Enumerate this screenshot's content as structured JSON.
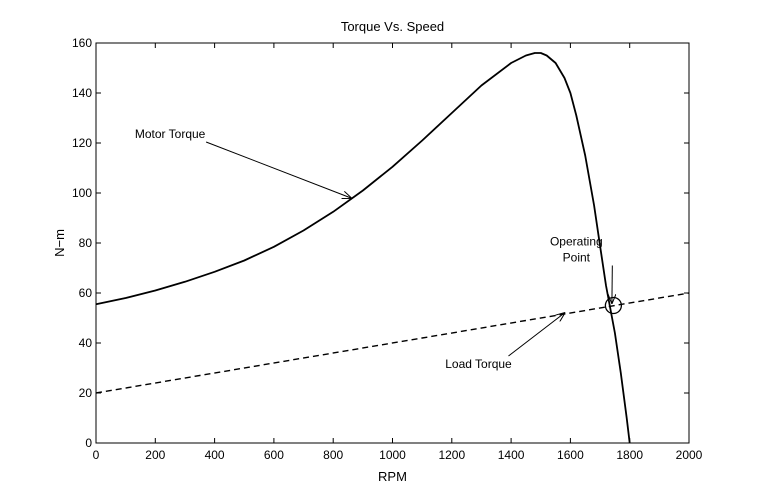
{
  "chart_data": {
    "type": "line",
    "title": "Torque Vs. Speed",
    "xlabel": "RPM",
    "ylabel": "N−m",
    "xlim": [
      0,
      2000
    ],
    "ylim": [
      0,
      160
    ],
    "x_ticks": [
      0,
      200,
      400,
      600,
      800,
      1000,
      1200,
      1400,
      1600,
      1800,
      2000
    ],
    "y_ticks": [
      0,
      20,
      40,
      60,
      80,
      100,
      120,
      140,
      160
    ],
    "grid": false,
    "series": [
      {
        "name": "Motor Torque",
        "style": "solid",
        "x": [
          0,
          100,
          200,
          300,
          400,
          500,
          600,
          700,
          800,
          900,
          1000,
          1100,
          1200,
          1300,
          1400,
          1450,
          1480,
          1500,
          1520,
          1550,
          1580,
          1600,
          1620,
          1650,
          1680,
          1700,
          1720,
          1750,
          1770,
          1790,
          1800
        ],
        "y": [
          55.5,
          58,
          61,
          64.5,
          68.5,
          73,
          78.5,
          85,
          92.5,
          101,
          110.5,
          121,
          132,
          143,
          152,
          155,
          156,
          156,
          155,
          152,
          146,
          140,
          131,
          115,
          95,
          79,
          63,
          44,
          28,
          10,
          0
        ]
      },
      {
        "name": "Load Torque",
        "style": "dashed",
        "x": [
          0,
          2000
        ],
        "y": [
          20,
          60
        ]
      }
    ],
    "annotations": [
      {
        "text": "Motor Torque",
        "label_x": 250,
        "label_y": 122,
        "arrow_to_x": 860,
        "arrow_to_y": 98
      },
      {
        "text": "Operating\nPoint",
        "label_x": 1620,
        "label_y": 79,
        "arrow_to_x": 1740,
        "arrow_to_y": 56
      },
      {
        "text": "Load Torque",
        "label_x": 1290,
        "label_y": 30,
        "arrow_to_x": 1580,
        "arrow_to_y": 52
      }
    ],
    "operating_point": {
      "x": 1745,
      "y": 55
    }
  }
}
